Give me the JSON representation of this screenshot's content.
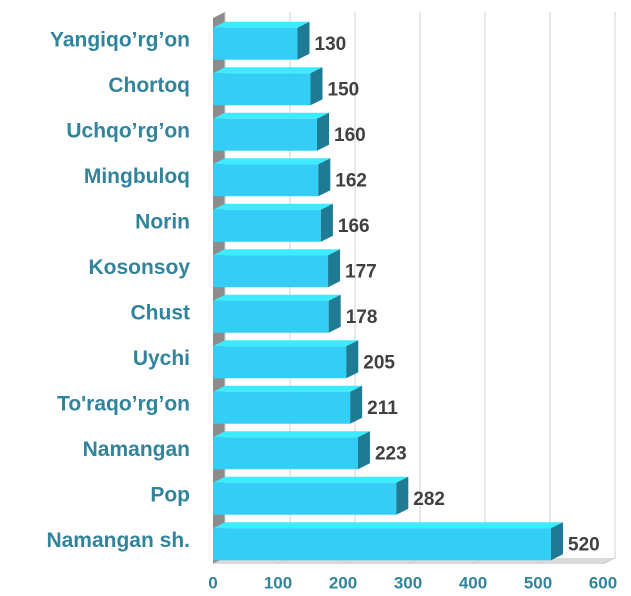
{
  "chart_data": {
    "type": "bar",
    "orientation": "horizontal",
    "categories": [
      "Yangiqo’rg’on",
      "Chortoq",
      "Uchqo’rg’on",
      "Mingbuloq",
      "Norin",
      "Kosonsoy",
      "Chust",
      "Uychi",
      "To'raqo’rg’on",
      "Namangan",
      "Pop",
      "Namangan sh."
    ],
    "values": [
      130,
      150,
      160,
      162,
      166,
      177,
      178,
      205,
      211,
      223,
      282,
      520
    ],
    "color": "#33cdf5",
    "xlim": [
      0,
      600
    ],
    "xticks": [
      0,
      100,
      200,
      300,
      400,
      500,
      600
    ],
    "grid": true
  }
}
